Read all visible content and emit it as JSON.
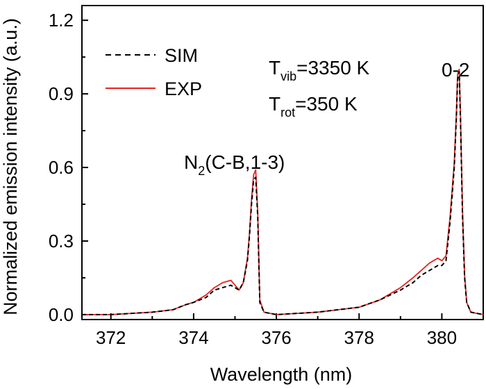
{
  "chart_data": {
    "type": "line",
    "xlabel": "Wavelength (nm)",
    "ylabel": "Normalized emission intensity (a.u.)",
    "xlim": [
      371.3,
      381.0
    ],
    "ylim": [
      -0.02,
      1.26
    ],
    "xticks": [
      372,
      374,
      376,
      378,
      380
    ],
    "yticks": [
      0.0,
      0.3,
      0.6,
      0.9,
      1.2
    ],
    "xtick_labels": [
      "372",
      "374",
      "376",
      "378",
      "380"
    ],
    "ytick_labels": [
      "0.0",
      "0.3",
      "0.6",
      "0.9",
      "1.2"
    ],
    "grid": false,
    "legend_position": "top-left",
    "series": [
      {
        "name": "SIM",
        "style": "dashed",
        "color": "#000000",
        "x": [
          371.3,
          372.0,
          373.0,
          373.5,
          373.8,
          374.0,
          374.3,
          374.5,
          374.7,
          374.9,
          375.0,
          375.1,
          375.2,
          375.3,
          375.35,
          375.4,
          375.45,
          375.5,
          375.55,
          375.6,
          375.7,
          376.0,
          377.0,
          378.0,
          378.5,
          379.0,
          379.3,
          379.5,
          379.7,
          379.9,
          380.0,
          380.1,
          380.2,
          380.3,
          380.35,
          380.38,
          380.42,
          380.45,
          380.5,
          380.55,
          380.6,
          380.7,
          381.0
        ],
        "y": [
          0.0,
          0.0,
          0.01,
          0.02,
          0.04,
          0.05,
          0.07,
          0.1,
          0.11,
          0.12,
          0.11,
          0.1,
          0.13,
          0.22,
          0.32,
          0.45,
          0.55,
          0.56,
          0.4,
          0.05,
          0.01,
          0.0,
          0.01,
          0.03,
          0.06,
          0.1,
          0.13,
          0.16,
          0.18,
          0.2,
          0.2,
          0.22,
          0.38,
          0.6,
          0.8,
          0.96,
          0.99,
          0.8,
          0.4,
          0.15,
          0.05,
          0.01,
          0.0
        ]
      },
      {
        "name": "EXP",
        "style": "solid",
        "color": "#e8231f",
        "x": [
          371.3,
          372.0,
          373.0,
          373.5,
          373.8,
          374.0,
          374.3,
          374.5,
          374.7,
          374.9,
          375.0,
          375.1,
          375.2,
          375.3,
          375.35,
          375.4,
          375.45,
          375.5,
          375.55,
          375.6,
          375.7,
          376.0,
          377.0,
          378.0,
          378.5,
          379.0,
          379.3,
          379.5,
          379.7,
          379.9,
          380.0,
          380.1,
          380.2,
          380.3,
          380.35,
          380.38,
          380.42,
          380.45,
          380.5,
          380.55,
          380.6,
          380.7,
          381.0
        ],
        "y": [
          0.0,
          0.0,
          0.01,
          0.02,
          0.04,
          0.05,
          0.08,
          0.11,
          0.13,
          0.14,
          0.12,
          0.1,
          0.13,
          0.23,
          0.33,
          0.47,
          0.57,
          0.59,
          0.42,
          0.06,
          0.01,
          0.0,
          0.01,
          0.03,
          0.06,
          0.11,
          0.15,
          0.18,
          0.21,
          0.23,
          0.22,
          0.24,
          0.4,
          0.62,
          0.82,
          0.98,
          1.0,
          0.82,
          0.42,
          0.16,
          0.05,
          0.01,
          0.0
        ]
      }
    ],
    "annotations": {
      "peak1_main": "N",
      "peak1_sub": "2",
      "peak1_rest": "(C-B,1-3)",
      "peak2": "0-2",
      "tvib_T": "T",
      "tvib_sub": "vib",
      "tvib_rest": "=3350 K",
      "trot_T": "T",
      "trot_sub": "rot",
      "trot_rest": "=350 K"
    }
  }
}
